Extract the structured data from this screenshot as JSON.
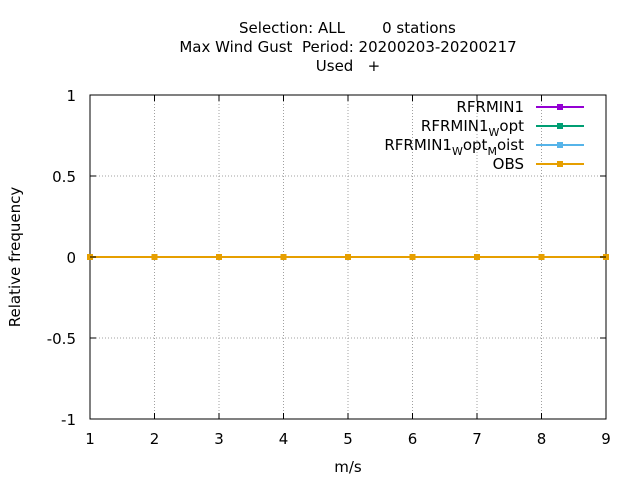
{
  "title": {
    "line1_left": "Selection: ALL",
    "line1_right": "0 stations",
    "line2": "Max Wind Gust  Period: 20200203-20200217",
    "line3": "Used   +"
  },
  "chart_data": {
    "type": "line",
    "xlabel": "m/s",
    "ylabel": "Relative frequency",
    "xlim": [
      1,
      9
    ],
    "ylim": [
      -1,
      1
    ],
    "xticks": [
      1,
      2,
      3,
      4,
      5,
      6,
      7,
      8,
      9
    ],
    "yticks": [
      -1,
      -0.5,
      0,
      0.5,
      1
    ],
    "x": [
      1,
      2,
      3,
      4,
      5,
      6,
      7,
      8,
      9
    ],
    "grid": true,
    "legend_position": "top-right",
    "series": [
      {
        "name": "RFRMIN1",
        "label_main": "RFRMIN1",
        "label_parts": [],
        "color": "#9400d3",
        "values": [
          0,
          0,
          0,
          0,
          0,
          0,
          0,
          0,
          0
        ]
      },
      {
        "name": "RFRMIN1_W opt",
        "label_main": "RFRMIN1",
        "label_parts": [
          {
            "sub": "W",
            "text": "opt"
          }
        ],
        "color": "#009e73",
        "values": [
          0,
          0,
          0,
          0,
          0,
          0,
          0,
          0,
          0
        ]
      },
      {
        "name": "RFRMIN1_W opt_M oist",
        "label_main": "RFRMIN1",
        "label_parts": [
          {
            "sub": "W",
            "text": "opt"
          },
          {
            "sub": "M",
            "text": "oist"
          }
        ],
        "color": "#56b4e9",
        "values": [
          0,
          0,
          0,
          0,
          0,
          0,
          0,
          0,
          0
        ]
      },
      {
        "name": "OBS",
        "label_main": "OBS",
        "label_parts": [],
        "color": "#e69f00",
        "values": [
          0,
          0,
          0,
          0,
          0,
          0,
          0,
          0,
          0
        ]
      }
    ]
  }
}
